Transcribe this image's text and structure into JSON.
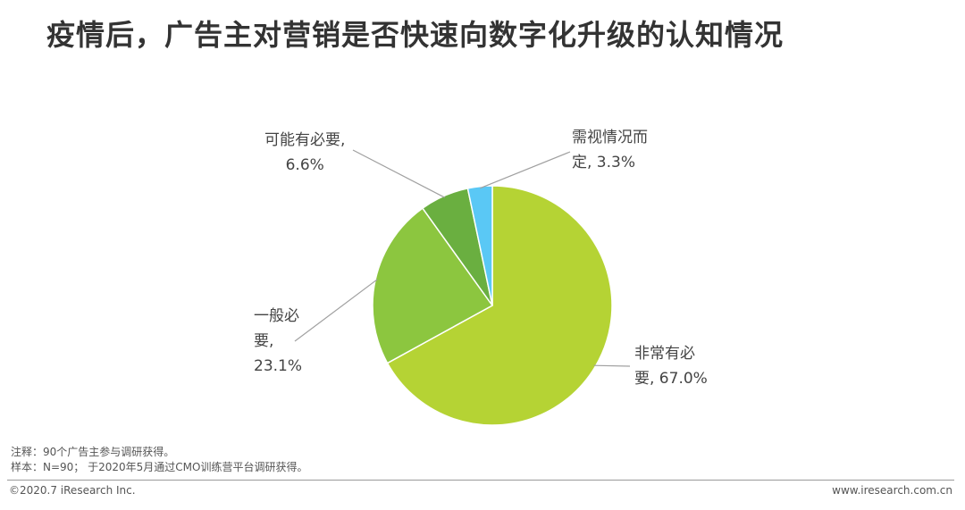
{
  "title": "疫情后，广告主对营销是否快速向数字化升级的认知情况",
  "chart_data": {
    "type": "pie",
    "title": "疫情后，广告主对营销是否快速向数字化升级的认知情况",
    "slices": [
      {
        "name": "非常有必要",
        "value": 67.0,
        "color": "#b5d334",
        "label_line1": "非常有必",
        "label_line2": "要, 67.0%"
      },
      {
        "name": "一般必要",
        "value": 23.1,
        "color": "#8cc63f",
        "label_line1": "一般必",
        "label_line2": "要,",
        "label_line3": "23.1%"
      },
      {
        "name": "可能有必要",
        "value": 6.6,
        "color": "#6aaf40",
        "label_line1": "可能有必要,",
        "label_line2": "6.6%"
      },
      {
        "name": "需视情况而定",
        "value": 3.3,
        "color": "#5ac8f5",
        "label_line1": "需视情况而",
        "label_line2": "定, 3.3%"
      }
    ]
  },
  "notes": {
    "line1": "注释：90个广告主参与调研获得。",
    "line2": "样本：N=90； 于2020年5月通过CMO训练营平台调研获得。"
  },
  "footer": {
    "copyright": "©2020.7 iResearch Inc.",
    "website": "www.iresearch.com.cn"
  }
}
